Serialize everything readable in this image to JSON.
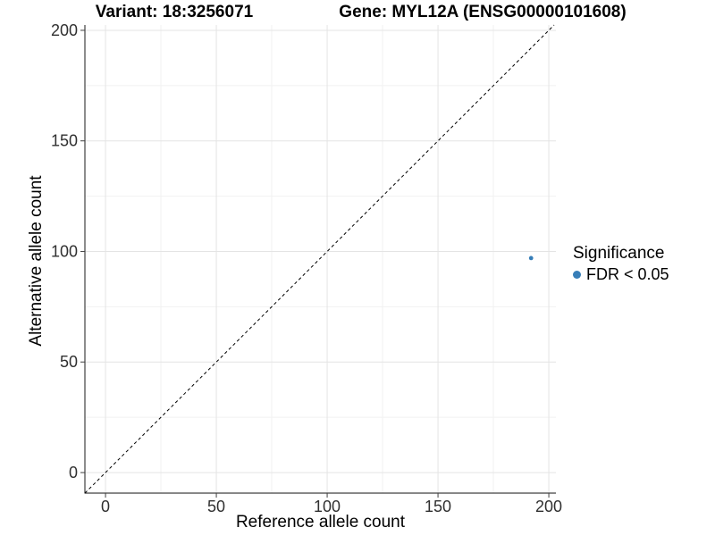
{
  "chart_data": {
    "type": "scatter",
    "titles": {
      "variant": "Variant: 18:3256071",
      "gene": "Gene: MYL12A (ENSG00000101608)"
    },
    "xlabel": "Reference allele count",
    "ylabel": "Alternative allele count",
    "xticks": [
      0,
      50,
      100,
      150,
      200
    ],
    "yticks": [
      0,
      50,
      100,
      150,
      200
    ],
    "xlim": [
      -9.3,
      203.2
    ],
    "ylim": [
      -9.3,
      202.4
    ],
    "grid": "major+minor",
    "legend_position": "right",
    "points": [
      {
        "x": 192,
        "y": 97,
        "series": "FDR < 0.05"
      }
    ],
    "identity_line": {
      "style": "dashed",
      "color": "#000000"
    },
    "legend": {
      "title": "Significance",
      "items": [
        {
          "label": "FDR < 0.05",
          "color": "#377EB8"
        }
      ]
    },
    "colors": {
      "point": "#377EB8",
      "grid_major": "#e4e4e4",
      "grid_minor": "#f1f1f1",
      "axis": "#404040",
      "tick_label": "#303030"
    }
  }
}
